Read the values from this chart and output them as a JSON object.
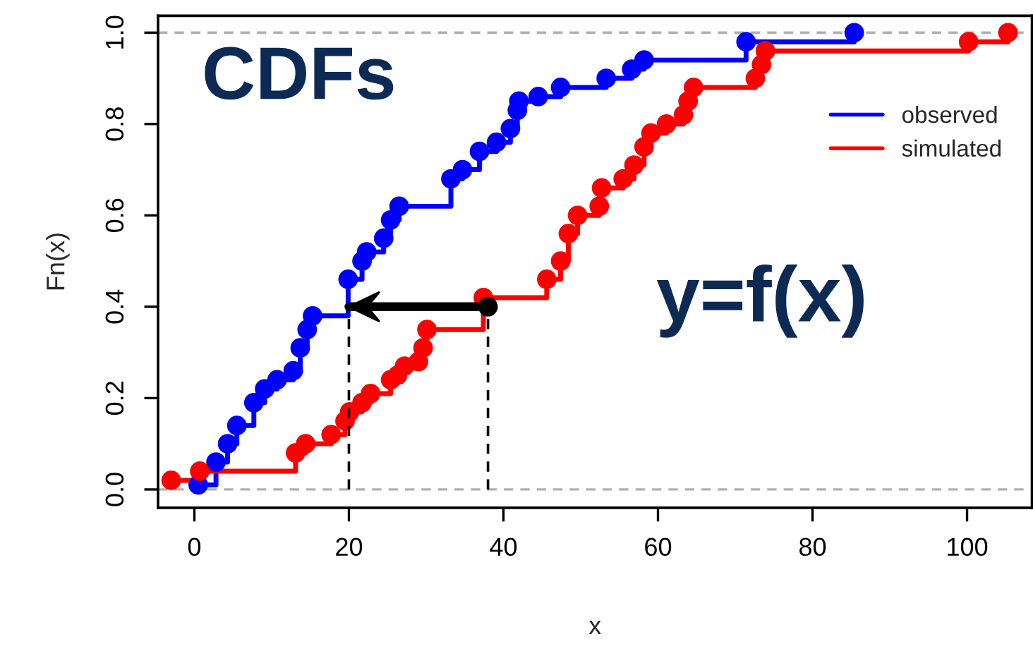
{
  "chart_data": {
    "type": "step",
    "xlabel": "x",
    "ylabel": "Fn(x)",
    "annotations": [
      "CDFs",
      "y=f(x)"
    ],
    "xlim": [
      -4.7,
      108.4
    ],
    "ylim": [
      -0.04,
      1.037
    ],
    "xticks": [
      0,
      20,
      40,
      60,
      80,
      100
    ],
    "yticks": [
      {
        "value": 0,
        "label": "0.0"
      },
      {
        "value": 0.2,
        "label": "0.2"
      },
      {
        "value": 0.4,
        "label": "0.4"
      },
      {
        "value": 0.6,
        "label": "0.6"
      },
      {
        "value": 0.8,
        "label": "0.8"
      },
      {
        "value": 1,
        "label": "1.0"
      }
    ],
    "ref_lines": [
      {
        "axis": "y",
        "value": 0,
        "color": "#b0b0b0",
        "line_style": "dashed"
      },
      {
        "axis": "y",
        "value": 1,
        "color": "#b0b0b0",
        "line_style": "dashed"
      }
    ],
    "legend": "top right",
    "marker": "circle",
    "grid": false,
    "series": [
      {
        "name": "observed",
        "color": "#0000ff",
        "x": [
          0.5,
          2.8,
          4.3,
          5.5,
          7.7,
          9.1,
          10.7,
          12.8,
          13.7,
          14.6,
          15.3,
          19.9,
          21.7,
          22.3,
          24.5,
          25.4,
          26.5,
          33.2,
          34.7,
          36.9,
          39.1,
          40.9,
          41.8,
          42.0,
          44.5,
          47.4,
          53.3,
          56.6,
          58.2,
          71.4,
          85.4
        ],
        "values": [
          0.01,
          0.06,
          0.1,
          0.14,
          0.19,
          0.22,
          0.24,
          0.26,
          0.31,
          0.35,
          0.38,
          0.46,
          0.5,
          0.52,
          0.55,
          0.59,
          0.62,
          0.68,
          0.7,
          0.74,
          0.76,
          0.79,
          0.83,
          0.85,
          0.86,
          0.88,
          0.9,
          0.92,
          0.94,
          0.98,
          1.0
        ]
      },
      {
        "name": "simulated",
        "color": "#ff0000",
        "x": [
          -3.0,
          0.7,
          13.1,
          14.4,
          17.7,
          19.5,
          20.1,
          21.7,
          22.8,
          25.4,
          26.3,
          27.2,
          29.0,
          29.6,
          30.1,
          37.4,
          45.6,
          47.4,
          48.4,
          49.6,
          52.4,
          52.7,
          55.5,
          56.9,
          58.2,
          59.1,
          61.1,
          63.3,
          63.9,
          64.6,
          72.6,
          73.4,
          73.9,
          100.2,
          105.3
        ],
        "values": [
          0.02,
          0.04,
          0.08,
          0.1,
          0.12,
          0.15,
          0.17,
          0.19,
          0.21,
          0.24,
          0.25,
          0.27,
          0.28,
          0.31,
          0.35,
          0.42,
          0.46,
          0.5,
          0.56,
          0.6,
          0.62,
          0.66,
          0.68,
          0.71,
          0.75,
          0.78,
          0.8,
          0.82,
          0.85,
          0.88,
          0.9,
          0.93,
          0.96,
          0.98,
          1.0
        ]
      },
      {
        "type": "line",
        "color": "#000000",
        "line_style": "dashed",
        "marker": "none",
        "x": [
          20,
          20
        ],
        "values": [
          0,
          0.4
        ]
      },
      {
        "type": "line",
        "color": "#000000",
        "line_style": "dashed",
        "marker": "circle",
        "x": [
          38,
          38
        ],
        "values": [
          0,
          0.4
        ]
      },
      {
        "type": "line",
        "color": "#000000",
        "line_style": "solid",
        "marker": "none",
        "x": [
          38,
          20
        ],
        "values": [
          0.4,
          0.4
        ]
      }
    ]
  }
}
